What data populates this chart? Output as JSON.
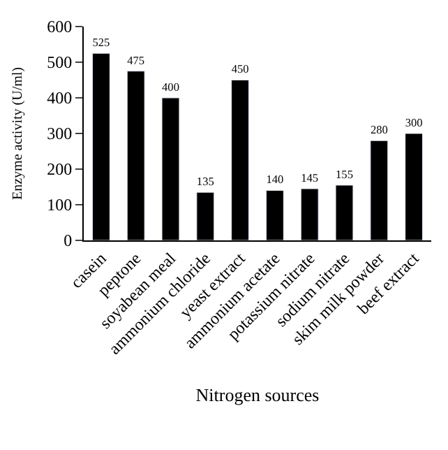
{
  "chart_data": {
    "type": "bar",
    "xlabel": "Nitrogen sources",
    "ylabel": "Enzyme activity (U/ml)",
    "categories": [
      "casein",
      "peptone",
      "soyabean meal",
      "ammonium chloride",
      "yeast extract",
      "ammonium acetate",
      "potassium nitrate",
      "sodium nitrate",
      "skim milk powder",
      "beef extract"
    ],
    "values": [
      525,
      475,
      400,
      135,
      450,
      140,
      145,
      155,
      280,
      300
    ],
    "color": "#000000",
    "ylim": [
      0,
      600
    ],
    "yticks": [
      0,
      100,
      200,
      300,
      400,
      500,
      600
    ],
    "data_labels": true
  }
}
